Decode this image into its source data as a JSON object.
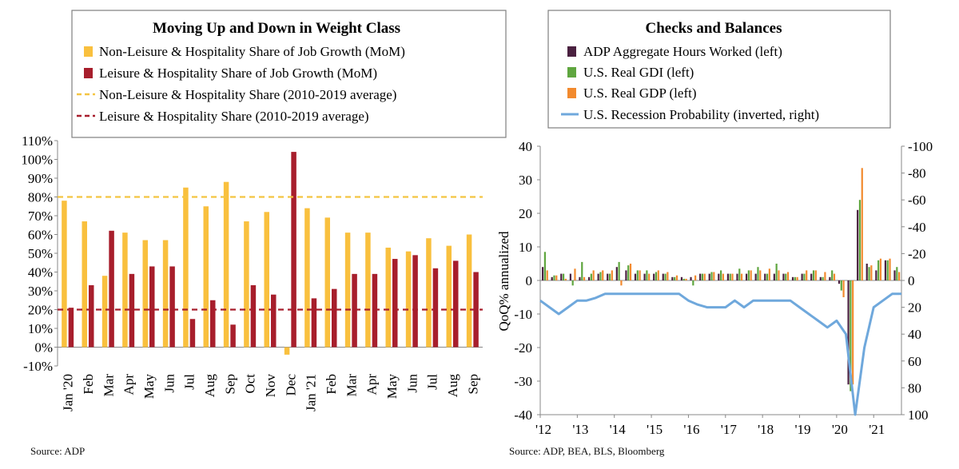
{
  "colors": {
    "non_leisure": "#F9C03E",
    "leisure": "#A71E2C",
    "non_leisure_avg": "#F4C542",
    "leisure_avg": "#A71E2C",
    "adp": "#4A2140",
    "gdi": "#5FA63F",
    "gdp": "#F28A2E",
    "recession": "#6FA8DC",
    "axis": "#888888",
    "legend_border": "#7f7f7f"
  },
  "left_source": "Source: ADP",
  "right_source": "Source: ADP, BEA, BLS, Bloomberg",
  "chart_data": [
    {
      "type": "bar",
      "title": "Moving Up and Down in Weight Class",
      "legend_placement": "top",
      "legend": [
        "Non-Leisure & Hospitality Share of Job Growth (MoM)",
        "Leisure & Hospitality Share of Job Growth (MoM)",
        "Non-Leisure & Hospitality Share (2010-2019 average)",
        "Leisure & Hospitality Share (2010-2019 average)"
      ],
      "categories": [
        "Jan '20",
        "Feb",
        "Mar",
        "Apr",
        "May",
        "Jun",
        "Jul",
        "Aug",
        "Sep",
        "Oct",
        "Nov",
        "Dec",
        "Jan '21",
        "Feb",
        "Mar",
        "Apr",
        "May",
        "Jun",
        "Jul",
        "Aug",
        "Sep"
      ],
      "series": [
        {
          "name": "Non-Leisure & Hospitality Share of Job Growth (MoM)",
          "values": [
            78,
            67,
            38,
            61,
            57,
            57,
            85,
            75,
            88,
            67,
            72,
            -4,
            74,
            69,
            61,
            61,
            53,
            51,
            58,
            54,
            60
          ]
        },
        {
          "name": "Leisure & Hospitality Share of Job Growth (MoM)",
          "values": [
            21,
            33,
            62,
            39,
            43,
            43,
            15,
            25,
            12,
            33,
            28,
            104,
            26,
            31,
            39,
            39,
            47,
            49,
            42,
            46,
            40
          ]
        }
      ],
      "reference_lines": [
        {
          "name": "Non-Leisure & Hospitality Share (2010-2019 average)",
          "value": 80
        },
        {
          "name": "Leisure & Hospitality Share (2010-2019 average)",
          "value": 20
        }
      ],
      "ylim": [
        -10,
        110
      ],
      "yticks": [
        "-10%",
        "0%",
        "10%",
        "20%",
        "30%",
        "40%",
        "50%",
        "60%",
        "70%",
        "80%",
        "90%",
        "100%",
        "110%"
      ],
      "grid": false
    },
    {
      "type": "bar",
      "title": "Checks and Balances",
      "legend_placement": "top",
      "legend": [
        "ADP Aggregate Hours Worked (left)",
        "U.S. Real GDI (left)",
        "U.S. Real GDP (left)",
        "U.S. Recession Probability (inverted, right)"
      ],
      "ylabel": "QoQ% annualized",
      "ylim_left": [
        -40,
        40
      ],
      "ylim_right": [
        100,
        -100
      ],
      "yticks_left": [
        "40",
        "30",
        "20",
        "10",
        "0",
        "-10",
        "-20",
        "-30",
        "-40"
      ],
      "yticks_right": [
        "-100",
        "-80",
        "-60",
        "-40",
        "-20",
        "0",
        "20",
        "40",
        "60",
        "80",
        "100"
      ],
      "xticks": [
        "'12",
        "'13",
        "'14",
        "'15",
        "'16",
        "'17",
        "'18",
        "'19",
        "'20",
        "'21"
      ],
      "x_start": 2012.0,
      "x_end": 2021.75,
      "bar_series": [
        {
          "name": "ADP Aggregate Hours Worked (left)",
          "x": [
            2012.0,
            2012.25,
            2012.5,
            2012.75,
            2013.0,
            2013.25,
            2013.5,
            2013.75,
            2014.0,
            2014.25,
            2014.5,
            2014.75,
            2015.0,
            2015.25,
            2015.5,
            2015.75,
            2016.0,
            2016.25,
            2016.5,
            2016.75,
            2017.0,
            2017.25,
            2017.5,
            2017.75,
            2018.0,
            2018.25,
            2018.5,
            2018.75,
            2019.0,
            2019.25,
            2019.5,
            2019.75,
            2020.0,
            2020.25,
            2020.5,
            2020.75,
            2021.0,
            2021.25,
            2021.5
          ],
          "values": [
            4,
            1,
            2,
            2,
            1,
            1,
            2,
            2,
            4,
            3,
            2,
            2,
            2,
            2,
            1,
            1,
            1,
            2,
            2,
            2,
            2,
            2,
            2,
            2,
            2,
            2,
            2,
            1,
            2,
            2,
            1,
            1,
            -1,
            -31,
            21,
            5,
            3,
            6,
            3
          ]
        },
        {
          "name": "U.S. Real GDI (left)",
          "x": [
            2012.0,
            2012.25,
            2012.5,
            2012.75,
            2013.0,
            2013.25,
            2013.5,
            2013.75,
            2014.0,
            2014.25,
            2014.5,
            2014.75,
            2015.0,
            2015.25,
            2015.5,
            2015.75,
            2016.0,
            2016.25,
            2016.5,
            2016.75,
            2017.0,
            2017.25,
            2017.5,
            2017.75,
            2018.0,
            2018.25,
            2018.5,
            2018.75,
            2019.0,
            2019.25,
            2019.5,
            2019.75,
            2020.0,
            2020.25,
            2020.5,
            2020.75,
            2021.0,
            2021.25,
            2021.5
          ],
          "values": [
            8.5,
            1.5,
            2,
            -1.5,
            5.5,
            2,
            2.5,
            2,
            5.5,
            4.5,
            3,
            3,
            2.5,
            2,
            1,
            0.5,
            -1.5,
            2,
            2.5,
            3,
            2,
            3.5,
            3,
            4,
            2,
            5,
            2,
            1,
            2,
            3,
            1,
            3,
            -3,
            -33,
            24,
            4,
            6,
            6,
            4
          ]
        },
        {
          "name": "U.S. Real GDP (left)",
          "x": [
            2012.0,
            2012.25,
            2012.5,
            2012.75,
            2013.0,
            2013.25,
            2013.5,
            2013.75,
            2014.0,
            2014.25,
            2014.5,
            2014.75,
            2015.0,
            2015.25,
            2015.5,
            2015.75,
            2016.0,
            2016.25,
            2016.5,
            2016.75,
            2017.0,
            2017.25,
            2017.5,
            2017.75,
            2018.0,
            2018.25,
            2018.5,
            2018.75,
            2019.0,
            2019.25,
            2019.5,
            2019.75,
            2020.0,
            2020.25,
            2020.5,
            2020.75,
            2021.0,
            2021.25,
            2021.5
          ],
          "values": [
            3,
            1.5,
            0.5,
            3.5,
            1,
            3,
            3,
            3,
            -1.5,
            5,
            3,
            2,
            3,
            2.5,
            1.5,
            0.5,
            1.5,
            2,
            2.5,
            2,
            2,
            2,
            3,
            3,
            3.5,
            3,
            2.5,
            1,
            3,
            3,
            2.5,
            2,
            -5,
            -31,
            33.5,
            4.5,
            6.5,
            6.5,
            2.5
          ]
        }
      ],
      "line_series": {
        "name": "U.S. Recession Probability (inverted, right)",
        "x": [
          2012.0,
          2012.25,
          2012.5,
          2012.75,
          2013.0,
          2013.25,
          2013.5,
          2013.75,
          2014.0,
          2014.25,
          2014.5,
          2014.75,
          2015.0,
          2015.25,
          2015.5,
          2015.75,
          2016.0,
          2016.25,
          2016.5,
          2016.75,
          2017.0,
          2017.25,
          2017.5,
          2017.75,
          2018.0,
          2018.25,
          2018.5,
          2018.75,
          2019.0,
          2019.25,
          2019.5,
          2019.75,
          2020.0,
          2020.25,
          2020.5,
          2020.75,
          2021.0,
          2021.25,
          2021.5,
          2021.75
        ],
        "values": [
          15,
          20,
          25,
          20,
          15,
          15,
          13,
          10,
          10,
          10,
          10,
          10,
          10,
          10,
          10,
          10,
          15,
          18,
          20,
          20,
          20,
          15,
          20,
          15,
          15,
          15,
          15,
          15,
          20,
          25,
          30,
          35,
          30,
          40,
          100,
          50,
          20,
          15,
          10,
          10
        ]
      }
    }
  ]
}
